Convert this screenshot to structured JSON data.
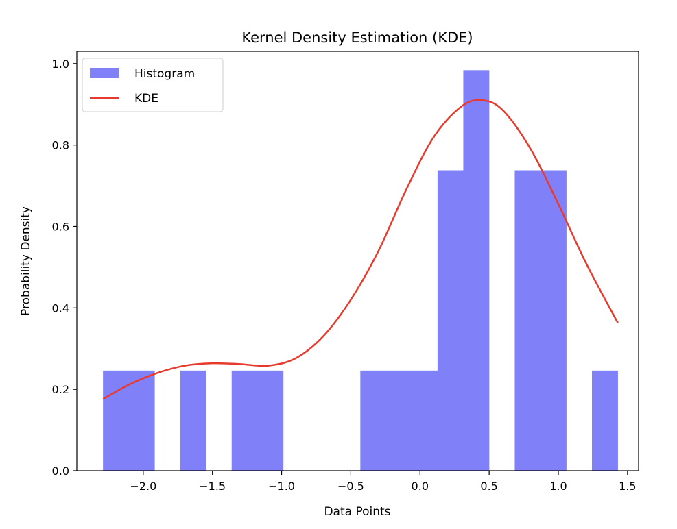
{
  "chart_data": {
    "type": "bar",
    "title": "Kernel Density Estimation (KDE)",
    "xlabel": "Data Points",
    "ylabel": "Probability Density",
    "xlim": [
      -2.48,
      1.58
    ],
    "ylim": [
      0.0,
      1.03
    ],
    "x_ticks": [
      -2.0,
      -1.5,
      -1.0,
      -0.5,
      0.0,
      0.5,
      1.0,
      1.5
    ],
    "x_tick_labels": [
      "−2.0",
      "−1.5",
      "−1.0",
      "−0.5",
      "0.0",
      "0.5",
      "1.0",
      "1.5"
    ],
    "y_ticks": [
      0.0,
      0.2,
      0.4,
      0.6,
      0.8,
      1.0
    ],
    "y_tick_labels": [
      "0.0",
      "0.2",
      "0.4",
      "0.6",
      "0.8",
      "1.0"
    ],
    "grid": false,
    "legend_placement": "upper-left",
    "series": [
      {
        "name": "Histogram",
        "kind": "histogram",
        "color": "#8080f8",
        "bin_edges": [
          -2.291,
          -2.105,
          -1.919,
          -1.733,
          -1.547,
          -1.361,
          -1.175,
          -0.989,
          -0.803,
          -0.617,
          -0.431,
          -0.245,
          -0.059,
          0.127,
          0.313,
          0.499,
          0.685,
          0.871,
          1.057,
          1.243,
          1.429
        ],
        "values": [
          0.246,
          0.246,
          0,
          0.246,
          0,
          0.246,
          0.246,
          0,
          0,
          0,
          0.246,
          0.246,
          0.246,
          0.738,
          0.984,
          0,
          0.738,
          0.738,
          0,
          0.246
        ]
      },
      {
        "name": "KDE",
        "kind": "line",
        "color": "#e8392c",
        "x": [
          -2.29,
          -2.1,
          -1.9,
          -1.7,
          -1.5,
          -1.3,
          -1.1,
          -0.9,
          -0.7,
          -0.5,
          -0.3,
          -0.1,
          0.1,
          0.3,
          0.45,
          0.6,
          0.8,
          1.0,
          1.2,
          1.43
        ],
        "y": [
          0.176,
          0.212,
          0.24,
          0.258,
          0.264,
          0.262,
          0.258,
          0.276,
          0.33,
          0.42,
          0.54,
          0.69,
          0.82,
          0.895,
          0.91,
          0.885,
          0.79,
          0.655,
          0.51,
          0.363
        ]
      }
    ]
  }
}
